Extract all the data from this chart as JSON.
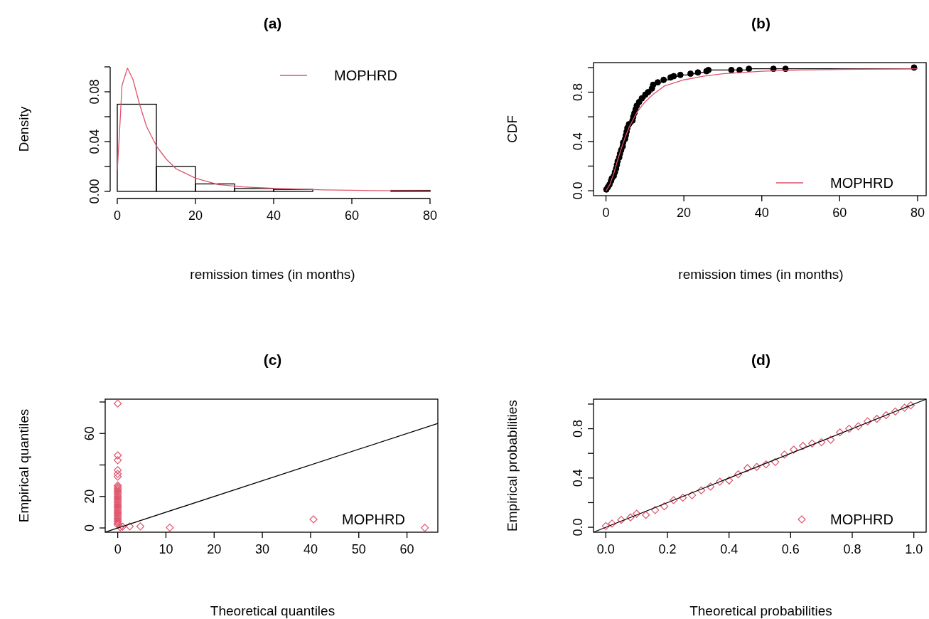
{
  "chart_data": [
    {
      "type": "histogram",
      "title": "(a)",
      "xlabel": "remission times (in months)",
      "ylabel": "Density",
      "bins": [
        0,
        10,
        20,
        30,
        40,
        50,
        60,
        70,
        80
      ],
      "values": [
        0.07,
        0.02,
        0.006,
        0.0023,
        0.0016,
        0,
        0,
        0.0008
      ],
      "color": "#000000",
      "series": [
        {
          "type": "line",
          "name": "MOPHRD",
          "color": "#df536b",
          "x": [
            0,
            0.6,
            1.2,
            2.6,
            4,
            5.7,
            7.5,
            10.1,
            12.5,
            15.1,
            20.1,
            25.8,
            32,
            40,
            52.6,
            65,
            80
          ],
          "values": [
            0.017,
            0.049,
            0.085,
            0.099,
            0.09,
            0.07,
            0.052,
            0.036,
            0.026,
            0.018,
            0.0105,
            0.0055,
            0.0037,
            0.0025,
            0.0012,
            0.0007,
            0.0004
          ]
        }
      ],
      "xlim": [
        0,
        80
      ],
      "xticks": [
        0,
        20,
        40,
        60,
        80
      ],
      "ylim": [
        0,
        0.1
      ],
      "yticks": [
        {
          "value": 0,
          "label": "0.00"
        },
        {
          "value": 0.02,
          "label": null
        },
        {
          "value": 0.04,
          "label": "0.04"
        },
        {
          "value": 0.06,
          "label": null
        },
        {
          "value": 0.08,
          "label": "0.08"
        },
        {
          "value": 0.1,
          "label": null
        }
      ],
      "legend": "top right"
    },
    {
      "type": "line",
      "title": "(b)",
      "xlabel": "remission times (in months)",
      "ylabel": "CDF",
      "series": [
        {
          "type": "step",
          "color": "#000000",
          "marker": "circle",
          "x": [
            0.1,
            0.5,
            0.9,
            1.3,
            1.5,
            2,
            2.3,
            2.6,
            2.8,
            3,
            3.4,
            3.6,
            3.9,
            4.3,
            4.4,
            4.9,
            5.1,
            5.3,
            5.5,
            5.9,
            6.8,
            7,
            7.3,
            7.6,
            7.9,
            8.5,
            9.2,
            10.1,
            10.8,
            11.8,
            12.1,
            13.3,
            14.8,
            16.6,
            17.4,
            19.1,
            21.7,
            23.6,
            25.8,
            26.3,
            32.2,
            34.3,
            36.7,
            43,
            46.1,
            79.1
          ],
          "values": [
            0.01,
            0.03,
            0.05,
            0.08,
            0.1,
            0.12,
            0.15,
            0.18,
            0.21,
            0.24,
            0.27,
            0.3,
            0.33,
            0.36,
            0.39,
            0.42,
            0.45,
            0.48,
            0.51,
            0.54,
            0.57,
            0.6,
            0.63,
            0.66,
            0.69,
            0.72,
            0.75,
            0.78,
            0.8,
            0.83,
            0.86,
            0.88,
            0.9,
            0.92,
            0.93,
            0.94,
            0.95,
            0.96,
            0.97,
            0.98,
            0.98,
            0.98,
            0.99,
            0.99,
            0.99,
            1
          ]
        },
        {
          "type": "line",
          "name": "MOPHRD",
          "color": "#df536b",
          "x": [
            0,
            1,
            2,
            3,
            4,
            5,
            6,
            8,
            10,
            12,
            15,
            20,
            25,
            30,
            40,
            50,
            60,
            80
          ],
          "values": [
            0,
            0.05,
            0.14,
            0.25,
            0.35,
            0.44,
            0.52,
            0.64,
            0.72,
            0.78,
            0.85,
            0.9,
            0.93,
            0.95,
            0.97,
            0.98,
            0.985,
            0.99
          ]
        }
      ],
      "xlim": [
        -3.2,
        82.2
      ],
      "xticks": [
        0,
        20,
        40,
        60,
        80
      ],
      "ylim": [
        -0.04,
        1.04
      ],
      "yticks": [
        {
          "value": 0,
          "label": "0.0"
        },
        {
          "value": 0.2,
          "label": null
        },
        {
          "value": 0.4,
          "label": "0.4"
        },
        {
          "value": 0.6,
          "label": null
        },
        {
          "value": 0.8,
          "label": "0.8"
        },
        {
          "value": 1,
          "label": null
        }
      ],
      "legend": "bottom right"
    },
    {
      "type": "scatter",
      "title": "(c)",
      "xlabel": "Theoretical quantiles",
      "ylabel": "Empirical quantiles",
      "series": [
        {
          "name": "MOPHRD",
          "color": "#df536b",
          "marker": "diamond",
          "x": [
            0,
            0,
            0,
            0,
            0,
            0,
            0,
            0,
            0,
            0,
            0,
            0,
            0,
            0,
            0,
            0,
            0,
            0,
            0,
            0,
            0,
            0,
            0,
            0,
            0,
            0,
            0,
            0,
            0,
            0,
            0,
            0,
            0.5,
            1,
            2.5,
            4.7,
            10.8,
            63.7
          ],
          "values": [
            2,
            3,
            4,
            5,
            6,
            7,
            8,
            9,
            10,
            11,
            12,
            13,
            14,
            15,
            16,
            17,
            18,
            19,
            20,
            21,
            22,
            23,
            24,
            25,
            26,
            27,
            32.6,
            34.3,
            36.7,
            43,
            46.1,
            79,
            0.5,
            0.8,
            1,
            1,
            0.2,
            0.1
          ]
        },
        {
          "type": "line",
          "color": "#000000",
          "x": [
            -2.6,
            66.4
          ],
          "values": [
            -2.6,
            66.4
          ]
        }
      ],
      "xlim": [
        -2.6,
        66.4
      ],
      "xticks": [
        0,
        10,
        20,
        30,
        40,
        50,
        60
      ],
      "ylim": [
        -2.7,
        81.8
      ],
      "yticks": [
        0,
        20,
        {
          "value": 40,
          "label": null
        },
        60,
        {
          "value": 80,
          "label": null
        }
      ],
      "legend": "bottom right"
    },
    {
      "type": "scatter",
      "title": "(d)",
      "xlabel": "Theoretical probabilities",
      "ylabel": "Empirical probabilities",
      "series": [
        {
          "name": "MOPHRD",
          "color": "#df536b",
          "marker": "diamond",
          "x": [
            0,
            0.02,
            0.05,
            0.08,
            0.1,
            0.13,
            0.16,
            0.19,
            0.22,
            0.25,
            0.28,
            0.31,
            0.34,
            0.37,
            0.4,
            0.43,
            0.46,
            0.49,
            0.52,
            0.55,
            0.58,
            0.61,
            0.64,
            0.67,
            0.7,
            0.73,
            0.76,
            0.79,
            0.82,
            0.85,
            0.88,
            0.91,
            0.94,
            0.97,
            0.99
          ],
          "values": [
            0.01,
            0.03,
            0.06,
            0.08,
            0.11,
            0.1,
            0.14,
            0.17,
            0.22,
            0.24,
            0.26,
            0.3,
            0.33,
            0.37,
            0.38,
            0.43,
            0.48,
            0.49,
            0.51,
            0.53,
            0.59,
            0.63,
            0.66,
            0.68,
            0.69,
            0.71,
            0.77,
            0.8,
            0.82,
            0.86,
            0.88,
            0.91,
            0.94,
            0.97,
            0.99
          ]
        },
        {
          "type": "line",
          "color": "#000000",
          "x": [
            -0.04,
            1.04
          ],
          "values": [
            -0.04,
            1.04
          ]
        }
      ],
      "xlim": [
        -0.04,
        1.04
      ],
      "xticks": [
        {
          "value": 0,
          "label": "0.0"
        },
        {
          "value": 0.2,
          "label": "0.2"
        },
        {
          "value": 0.4,
          "label": "0.4"
        },
        {
          "value": 0.6,
          "label": "0.6"
        },
        {
          "value": 0.8,
          "label": "0.8"
        },
        {
          "value": 1,
          "label": "1.0"
        }
      ],
      "ylim": [
        -0.04,
        1.04
      ],
      "yticks": [
        {
          "value": 0,
          "label": "0.0"
        },
        {
          "value": 0.2,
          "label": null
        },
        {
          "value": 0.4,
          "label": "0.4"
        },
        {
          "value": 0.6,
          "label": null
        },
        {
          "value": 0.8,
          "label": "0.8"
        },
        {
          "value": 1,
          "label": null
        }
      ],
      "legend": "bottom right"
    }
  ]
}
